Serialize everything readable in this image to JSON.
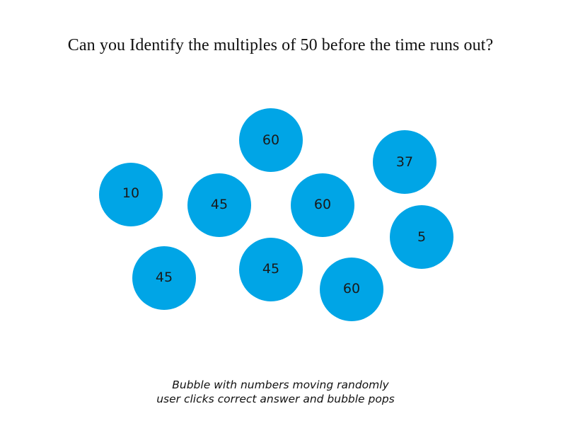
{
  "game": {
    "title": "Can you Identify the multiples of 50 before the time runs out?",
    "bubble_color": "#00a5e6",
    "bubbles": [
      {
        "value": "60"
      },
      {
        "value": "37"
      },
      {
        "value": "10"
      },
      {
        "value": "45"
      },
      {
        "value": "60"
      },
      {
        "value": "5"
      },
      {
        "value": "45"
      },
      {
        "value": "45"
      },
      {
        "value": "60"
      }
    ],
    "caption": {
      "line1": "Bubble with numbers moving randomly",
      "line2": "user clicks correct answer and bubble pops"
    }
  }
}
